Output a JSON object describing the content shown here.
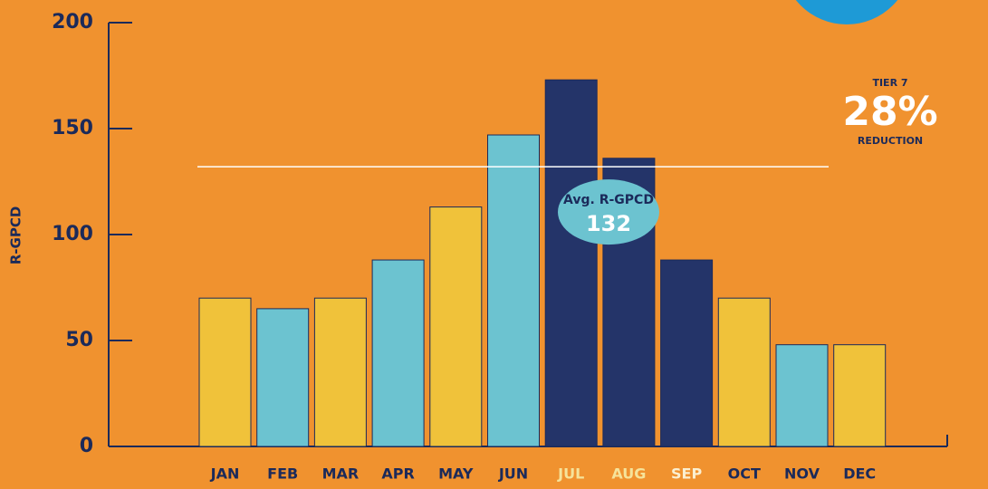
{
  "chart_data": {
    "type": "bar",
    "y_label": "R-GPCD",
    "categories": [
      "JAN",
      "FEB",
      "MAR",
      "APR",
      "MAY",
      "JUN",
      "JUL",
      "AUG",
      "SEP",
      "OCT",
      "NOV",
      "DEC"
    ],
    "values": [
      70,
      65,
      70,
      88,
      113,
      147,
      173,
      136,
      88,
      70,
      48,
      48
    ],
    "colors": [
      "#f0c23a",
      "#6cc3d0",
      "#f0c23a",
      "#6cc3d0",
      "#f0c23a",
      "#6cc3d0",
      "#243469",
      "#243469",
      "#243469",
      "#f0c23a",
      "#6cc3d0",
      "#f0c23a"
    ],
    "label_colors": [
      "#1b2a5a",
      "#1b2a5a",
      "#1b2a5a",
      "#1b2a5a",
      "#1b2a5a",
      "#1b2a5a",
      "#f6e39a",
      "#f6e39a",
      "#fbefd0",
      "#1b2a5a",
      "#1b2a5a",
      "#1b2a5a"
    ],
    "ylim": [
      0,
      200
    ],
    "yticks": [
      0,
      50,
      100,
      150,
      200
    ],
    "average": {
      "label": "Avg. R-GPCD",
      "value": 132
    },
    "annotation": {
      "top": "TIER 7",
      "big": "28%",
      "bottom": "REDUCTION"
    }
  }
}
